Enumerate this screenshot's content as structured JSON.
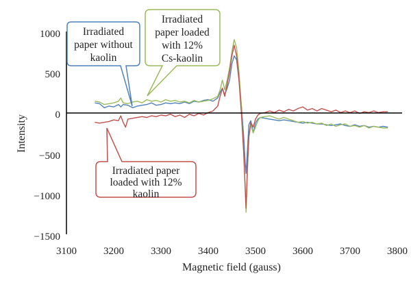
{
  "chart_data": {
    "type": "line",
    "xlabel": "Magnetic field (gauss)",
    "ylabel": "Intensity",
    "xlim": [
      3100,
      3800
    ],
    "ylim": [
      -1500,
      1000
    ],
    "xticks": [
      3100,
      3200,
      3300,
      3400,
      3500,
      3600,
      3700,
      3800
    ],
    "yticks": [
      1000,
      500,
      0,
      -500,
      -1000,
      -1500
    ],
    "xtick_labels": [
      "3100",
      "3200",
      "3300",
      "3400",
      "3500",
      "3600",
      "3700",
      "3800"
    ],
    "ytick_labels": [
      "1000",
      "500",
      "0",
      "−500",
      "−1000",
      "−1500"
    ],
    "grid": false,
    "series": [
      {
        "name": "Irradiated paper without kaolin",
        "color": "#4f81bd",
        "points": [
          [
            3160,
            120
          ],
          [
            3170,
            110
          ],
          [
            3180,
            60
          ],
          [
            3190,
            80
          ],
          [
            3200,
            70
          ],
          [
            3210,
            100
          ],
          [
            3215,
            70
          ],
          [
            3220,
            100
          ],
          [
            3230,
            90
          ],
          [
            3240,
            60
          ],
          [
            3250,
            80
          ],
          [
            3260,
            90
          ],
          [
            3270,
            100
          ],
          [
            3280,
            120
          ],
          [
            3290,
            90
          ],
          [
            3300,
            100
          ],
          [
            3310,
            120
          ],
          [
            3320,
            110
          ],
          [
            3330,
            120
          ],
          [
            3340,
            110
          ],
          [
            3350,
            130
          ],
          [
            3360,
            110
          ],
          [
            3370,
            140
          ],
          [
            3380,
            130
          ],
          [
            3390,
            150
          ],
          [
            3400,
            160
          ],
          [
            3410,
            140
          ],
          [
            3420,
            180
          ],
          [
            3425,
            250
          ],
          [
            3430,
            300
          ],
          [
            3435,
            220
          ],
          [
            3440,
            300
          ],
          [
            3445,
            400
          ],
          [
            3450,
            600
          ],
          [
            3455,
            700
          ],
          [
            3460,
            650
          ],
          [
            3465,
            400
          ],
          [
            3470,
            100
          ],
          [
            3475,
            -300
          ],
          [
            3478,
            -600
          ],
          [
            3480,
            -750
          ],
          [
            3483,
            -450
          ],
          [
            3486,
            -150
          ],
          [
            3490,
            -100
          ],
          [
            3495,
            -250
          ],
          [
            3500,
            -130
          ],
          [
            3505,
            -80
          ],
          [
            3510,
            -60
          ],
          [
            3520,
            -70
          ],
          [
            3530,
            -80
          ],
          [
            3540,
            -90
          ],
          [
            3550,
            -100
          ],
          [
            3560,
            -90
          ],
          [
            3570,
            -100
          ],
          [
            3580,
            -110
          ],
          [
            3590,
            -120
          ],
          [
            3600,
            -130
          ],
          [
            3610,
            -120
          ],
          [
            3620,
            -130
          ],
          [
            3630,
            -140
          ],
          [
            3640,
            -140
          ],
          [
            3650,
            -150
          ],
          [
            3660,
            -160
          ],
          [
            3670,
            -150
          ],
          [
            3680,
            -140
          ],
          [
            3690,
            -160
          ],
          [
            3700,
            -170
          ],
          [
            3710,
            -150
          ],
          [
            3720,
            -170
          ],
          [
            3730,
            -160
          ],
          [
            3740,
            -180
          ],
          [
            3750,
            -170
          ],
          [
            3760,
            -180
          ],
          [
            3770,
            -170
          ],
          [
            3780,
            -180
          ]
        ]
      },
      {
        "name": "Irradiated paper loaded with 12% Cs-kaolin",
        "color": "#9bbb59",
        "points": [
          [
            3160,
            140
          ],
          [
            3170,
            130
          ],
          [
            3180,
            100
          ],
          [
            3190,
            110
          ],
          [
            3200,
            120
          ],
          [
            3210,
            140
          ],
          [
            3215,
            180
          ],
          [
            3220,
            120
          ],
          [
            3230,
            110
          ],
          [
            3240,
            130
          ],
          [
            3250,
            140
          ],
          [
            3260,
            120
          ],
          [
            3270,
            160
          ],
          [
            3280,
            140
          ],
          [
            3290,
            150
          ],
          [
            3300,
            130
          ],
          [
            3310,
            160
          ],
          [
            3320,
            140
          ],
          [
            3330,
            150
          ],
          [
            3340,
            130
          ],
          [
            3350,
            140
          ],
          [
            3360,
            120
          ],
          [
            3370,
            150
          ],
          [
            3380,
            130
          ],
          [
            3390,
            140
          ],
          [
            3400,
            150
          ],
          [
            3410,
            170
          ],
          [
            3420,
            200
          ],
          [
            3425,
            280
          ],
          [
            3430,
            400
          ],
          [
            3435,
            280
          ],
          [
            3440,
            400
          ],
          [
            3445,
            550
          ],
          [
            3450,
            750
          ],
          [
            3455,
            900
          ],
          [
            3460,
            800
          ],
          [
            3465,
            500
          ],
          [
            3470,
            100
          ],
          [
            3475,
            -500
          ],
          [
            3478,
            -900
          ],
          [
            3480,
            -1230
          ],
          [
            3483,
            -700
          ],
          [
            3486,
            -300
          ],
          [
            3490,
            -150
          ],
          [
            3495,
            -250
          ],
          [
            3500,
            -180
          ],
          [
            3505,
            -100
          ],
          [
            3510,
            -60
          ],
          [
            3520,
            -50
          ],
          [
            3530,
            -40
          ],
          [
            3540,
            -60
          ],
          [
            3550,
            -80
          ],
          [
            3560,
            -60
          ],
          [
            3570,
            -80
          ],
          [
            3580,
            -100
          ],
          [
            3590,
            -120
          ],
          [
            3600,
            -110
          ],
          [
            3610,
            -130
          ],
          [
            3620,
            -120
          ],
          [
            3630,
            -140
          ],
          [
            3640,
            -130
          ],
          [
            3650,
            -160
          ],
          [
            3660,
            -140
          ],
          [
            3670,
            -170
          ],
          [
            3680,
            -150
          ],
          [
            3690,
            -140
          ],
          [
            3700,
            -170
          ],
          [
            3710,
            -160
          ],
          [
            3720,
            -180
          ],
          [
            3730,
            -160
          ],
          [
            3740,
            -190
          ],
          [
            3750,
            -170
          ],
          [
            3760,
            -180
          ],
          [
            3770,
            -190
          ],
          [
            3780,
            -190
          ]
        ]
      },
      {
        "name": "Irradiated paper loaded with 12% kaolin",
        "color": "#c0504d",
        "points": [
          [
            3160,
            -120
          ],
          [
            3170,
            -130
          ],
          [
            3180,
            -120
          ],
          [
            3190,
            -110
          ],
          [
            3200,
            -90
          ],
          [
            3210,
            -100
          ],
          [
            3215,
            -40
          ],
          [
            3220,
            -120
          ],
          [
            3225,
            -180
          ],
          [
            3230,
            -80
          ],
          [
            3240,
            -70
          ],
          [
            3250,
            -60
          ],
          [
            3260,
            -50
          ],
          [
            3270,
            -60
          ],
          [
            3280,
            -40
          ],
          [
            3290,
            -50
          ],
          [
            3300,
            -30
          ],
          [
            3310,
            -40
          ],
          [
            3320,
            -20
          ],
          [
            3330,
            -50
          ],
          [
            3340,
            -30
          ],
          [
            3350,
            -60
          ],
          [
            3360,
            -20
          ],
          [
            3370,
            -40
          ],
          [
            3380,
            -10
          ],
          [
            3390,
            -30
          ],
          [
            3400,
            0
          ],
          [
            3410,
            20
          ],
          [
            3420,
            80
          ],
          [
            3425,
            200
          ],
          [
            3430,
            300
          ],
          [
            3435,
            200
          ],
          [
            3440,
            350
          ],
          [
            3445,
            500
          ],
          [
            3450,
            700
          ],
          [
            3455,
            830
          ],
          [
            3460,
            700
          ],
          [
            3465,
            400
          ],
          [
            3470,
            0
          ],
          [
            3475,
            -500
          ],
          [
            3478,
            -900
          ],
          [
            3480,
            -1180
          ],
          [
            3483,
            -650
          ],
          [
            3486,
            -300
          ],
          [
            3490,
            -120
          ],
          [
            3495,
            -180
          ],
          [
            3500,
            -80
          ],
          [
            3505,
            -30
          ],
          [
            3510,
            -10
          ],
          [
            3520,
            0
          ],
          [
            3530,
            20
          ],
          [
            3540,
            0
          ],
          [
            3550,
            30
          ],
          [
            3560,
            10
          ],
          [
            3570,
            40
          ],
          [
            3580,
            20
          ],
          [
            3590,
            50
          ],
          [
            3600,
            70
          ],
          [
            3610,
            30
          ],
          [
            3620,
            50
          ],
          [
            3630,
            20
          ],
          [
            3640,
            50
          ],
          [
            3650,
            30
          ],
          [
            3660,
            10
          ],
          [
            3670,
            30
          ],
          [
            3680,
            0
          ],
          [
            3690,
            20
          ],
          [
            3700,
            0
          ],
          [
            3710,
            20
          ],
          [
            3720,
            -10
          ],
          [
            3730,
            10
          ],
          [
            3740,
            0
          ],
          [
            3750,
            20
          ],
          [
            3760,
            0
          ],
          [
            3770,
            10
          ],
          [
            3780,
            10
          ]
        ]
      }
    ],
    "annotations": [
      {
        "id": "callout-blue",
        "lines": [
          "Irradiated",
          "paper without",
          "kaolin"
        ],
        "border": "#4f81bd",
        "anchor": [
          3250,
          80
        ]
      },
      {
        "id": "callout-green",
        "lines": [
          "Irradiated",
          "paper loaded",
          "with 12%",
          "Cs-kaolin"
        ],
        "border": "#9bbb59",
        "anchor": [
          3275,
          140
        ]
      },
      {
        "id": "callout-red",
        "lines": [
          "Irradiated paper",
          "loaded with 12%",
          "kaolin"
        ],
        "border": "#c0504d",
        "anchor": [
          3215,
          -60
        ]
      }
    ]
  }
}
